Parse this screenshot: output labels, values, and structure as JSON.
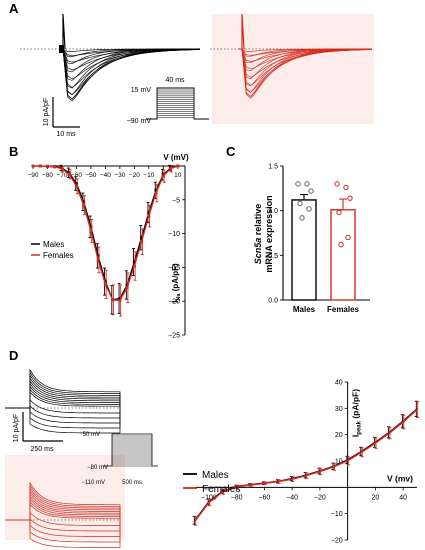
{
  "panels": {
    "a": "A",
    "b": "B",
    "c": "C",
    "d": "D"
  },
  "colors": {
    "male": "#000000",
    "female": "#d42b1e",
    "female_band": "#f6c9c4"
  },
  "panel_a": {
    "scale_y": "10 pA/pF",
    "scale_x": "10 ms",
    "protocol": {
      "v_top": "15 mV",
      "v_hold": "−90 mV",
      "duration": "40 ms"
    }
  },
  "panel_d_inset": {
    "scale_y": "10 pA/pF",
    "scale_x": "250 ms",
    "protocol": {
      "v_top": "50 mV",
      "v_mid": "−80 mV",
      "v_hold": "−110 mV",
      "duration": "500 ms"
    }
  },
  "legend_b": {
    "males": "Males",
    "females": "Females"
  },
  "legend_d": {
    "males": "Males",
    "females": "Females"
  },
  "chart_data": [
    {
      "panel": "B",
      "type": "line",
      "xlabel": "V (mV)",
      "ylabel": "INa (pA/pF)",
      "ylabel_main": "I",
      "ylabel_sub": "Na",
      "ylabel_unit": " (pA/pF)",
      "xlim": [
        -90,
        15
      ],
      "ylim": [
        -25,
        0
      ],
      "xticks": [
        "-90",
        "-80",
        "-70",
        "-60",
        "-50",
        "-40",
        "-30",
        "-20",
        "-10",
        "0",
        "10"
      ],
      "yticks": [
        "-5",
        "-10",
        "-15",
        "-20",
        "-25"
      ],
      "x": [
        -90,
        -85,
        -80,
        -75,
        -70,
        -65,
        -60,
        -55,
        -50,
        -45,
        -40,
        -35,
        -30,
        -25,
        -20,
        -15,
        -10,
        -5,
        0,
        5,
        10
      ],
      "series": [
        {
          "name": "Males",
          "values": [
            0,
            0,
            -0.05,
            -0.1,
            -0.3,
            -1.0,
            -2.6,
            -5.3,
            -9.0,
            -13.3,
            -17.1,
            -19.8,
            -19.6,
            -17.6,
            -14.2,
            -10.6,
            -6.9,
            -3.6,
            -1.3,
            -0.3,
            0
          ],
          "err": [
            0,
            0,
            0.1,
            0.2,
            0.4,
            0.7,
            1.0,
            1.3,
            1.6,
            1.8,
            2.0,
            2.1,
            2.2,
            2.1,
            2.0,
            1.8,
            1.5,
            1.2,
            0.8,
            0.4,
            0.2
          ]
        },
        {
          "name": "Females",
          "values": [
            0,
            0,
            -0.05,
            -0.1,
            -0.4,
            -1.2,
            -3.0,
            -5.8,
            -9.6,
            -13.9,
            -17.5,
            -19.8,
            -19.9,
            -18.0,
            -14.8,
            -11.2,
            -7.4,
            -4.0,
            -1.5,
            -0.4,
            0
          ],
          "err": [
            0,
            0,
            0.1,
            0.2,
            0.4,
            0.7,
            1.1,
            1.4,
            1.7,
            1.9,
            2.1,
            2.2,
            2.3,
            2.2,
            2.1,
            1.9,
            1.6,
            1.3,
            0.9,
            0.5,
            0.2
          ]
        }
      ]
    },
    {
      "panel": "C",
      "type": "bar",
      "ylabel_italic": "Scn5a",
      "ylabel_rest": " relative",
      "ylabel_line2": "mRNA expression",
      "ylim": [
        0,
        1.5
      ],
      "yticks": [
        "0.0",
        "0.5",
        "1.0",
        "1.5"
      ],
      "categories": [
        "Males",
        "Females"
      ],
      "values": [
        1.12,
        1.01
      ],
      "sem": [
        0.06,
        0.12
      ],
      "points": [
        [
          1.3,
          1.3,
          1.22,
          1.08,
          1.02,
          0.92
        ],
        [
          1.3,
          1.26,
          1.14,
          0.98,
          0.7,
          0.62
        ]
      ]
    },
    {
      "panel": "D",
      "type": "line",
      "xlabel": "V (mv)",
      "ylabel_main": "I",
      "ylabel_sub": "peak",
      "ylabel_unit": " (pA/pF)",
      "xlim": [
        -110,
        50
      ],
      "ylim": [
        -20,
        40
      ],
      "xticks": [
        "-100",
        "-80",
        "-60",
        "-40",
        "-20",
        "20",
        "40"
      ],
      "yticks": [
        "40",
        "30",
        "20",
        "10",
        "-10",
        "-20"
      ],
      "x": [
        -110,
        -100,
        -90,
        -80,
        -70,
        -60,
        -50,
        -40,
        -30,
        -20,
        -10,
        0,
        10,
        20,
        30,
        40,
        50
      ],
      "series": [
        {
          "name": "Males",
          "values": [
            -12.5,
            -5.5,
            -1.5,
            0.3,
            1.0,
            1.6,
            2.3,
            3.3,
            4.6,
            6.2,
            8.0,
            10.4,
            13.6,
            17.1,
            20.9,
            25.1,
            29.8
          ],
          "err": [
            1.5,
            1.1,
            0.8,
            0.5,
            0.4,
            0.5,
            0.6,
            0.8,
            1.0,
            1.1,
            1.2,
            1.4,
            1.6,
            1.9,
            2.1,
            2.5,
            2.9
          ]
        },
        {
          "name": "Females",
          "values": [
            -12.8,
            -5.8,
            -1.7,
            0.2,
            0.9,
            1.5,
            2.2,
            3.1,
            4.4,
            6.0,
            7.8,
            10.1,
            13.3,
            16.8,
            20.6,
            24.8,
            29.5
          ],
          "err": [
            1.6,
            1.2,
            0.9,
            0.6,
            0.5,
            0.5,
            0.7,
            0.9,
            1.1,
            1.2,
            1.3,
            1.5,
            1.7,
            2.0,
            2.2,
            2.6,
            3.0
          ]
        }
      ]
    }
  ]
}
